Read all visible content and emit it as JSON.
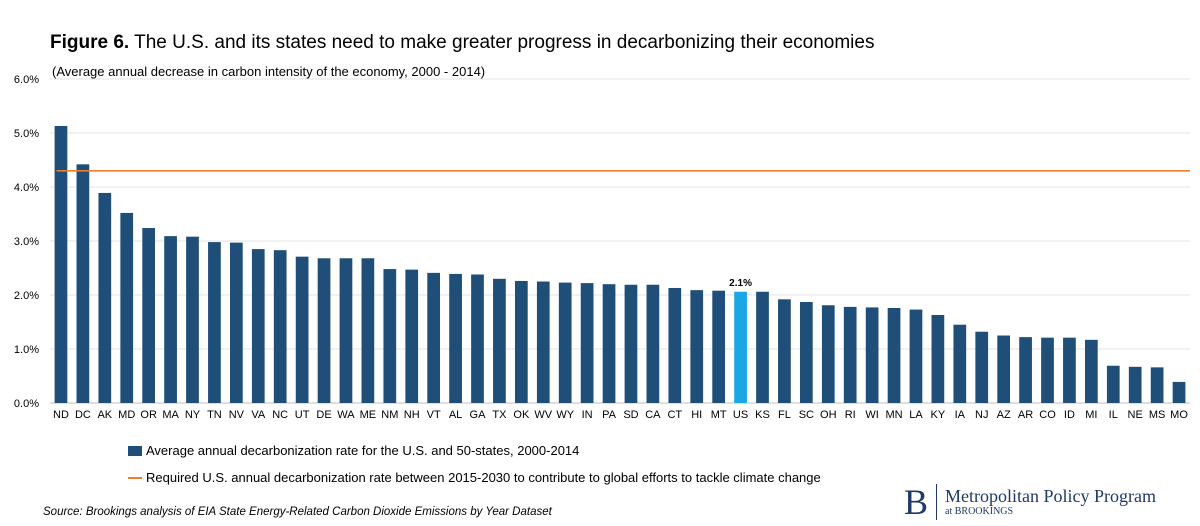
{
  "header": {
    "figure_label": "Figure 6.",
    "title": "The U.S. and its states need to make greater progress in decarbonizing their economies",
    "subtitle": "(Average annual decrease in carbon intensity of the economy, 2000 - 2014)"
  },
  "chart_data": {
    "type": "bar",
    "categories": [
      "ND",
      "DC",
      "AK",
      "MD",
      "OR",
      "MA",
      "NY",
      "TN",
      "NV",
      "VA",
      "NC",
      "UT",
      "DE",
      "WA",
      "ME",
      "NM",
      "NH",
      "VT",
      "AL",
      "GA",
      "TX",
      "OK",
      "WV",
      "WY",
      "IN",
      "PA",
      "SD",
      "CA",
      "CT",
      "HI",
      "MT",
      "US",
      "KS",
      "FL",
      "SC",
      "OH",
      "RI",
      "WI",
      "MN",
      "LA",
      "KY",
      "IA",
      "NJ",
      "AZ",
      "AR",
      "CO",
      "ID",
      "MI",
      "IL",
      "NE",
      "MS",
      "MO"
    ],
    "series": [
      {
        "name": "Average annual decarbonization rate for the U.S. and 50-states, 2000-2014",
        "values": [
          5.13,
          4.42,
          3.89,
          3.52,
          3.24,
          3.09,
          3.08,
          2.98,
          2.97,
          2.85,
          2.83,
          2.71,
          2.68,
          2.68,
          2.68,
          2.48,
          2.47,
          2.41,
          2.39,
          2.38,
          2.3,
          2.26,
          2.25,
          2.23,
          2.22,
          2.2,
          2.19,
          2.19,
          2.13,
          2.09,
          2.08,
          2.06,
          2.06,
          1.92,
          1.87,
          1.81,
          1.78,
          1.77,
          1.76,
          1.73,
          1.63,
          1.45,
          1.32,
          1.25,
          1.22,
          1.21,
          1.21,
          1.17,
          0.69,
          0.67,
          0.66,
          0.39
        ]
      }
    ],
    "reference_line": {
      "name": "Required U.S. annual decarbonization rate between 2015-2030 to contribute to global efforts to tackle climate change",
      "value": 4.3
    },
    "highlight": {
      "category": "US",
      "label": "2.1%"
    },
    "y_ticks": [
      "0.0%",
      "1.0%",
      "2.0%",
      "3.0%",
      "4.0%",
      "5.0%",
      "6.0%"
    ],
    "ylim": [
      0,
      6
    ],
    "grid": true,
    "legend_position": "bottom-left",
    "colors": {
      "bar": "#1f4e79",
      "highlight": "#1aa7e4",
      "reference": "#ed7d31",
      "grid": "#e3e3e3"
    }
  },
  "legend": {
    "bars": "Average annual decarbonization rate for the U.S. and 50-states, 2000-2014",
    "line": "Required U.S. annual decarbonization rate between 2015-2030 to contribute to global efforts to tackle climate change"
  },
  "source": "Source: Brookings analysis of EIA State Energy-Related Carbon Dioxide Emissions by Year Dataset",
  "logo": {
    "mark": "B",
    "main": "Metropolitan Policy Program",
    "sub": "at BROOKINGS"
  }
}
